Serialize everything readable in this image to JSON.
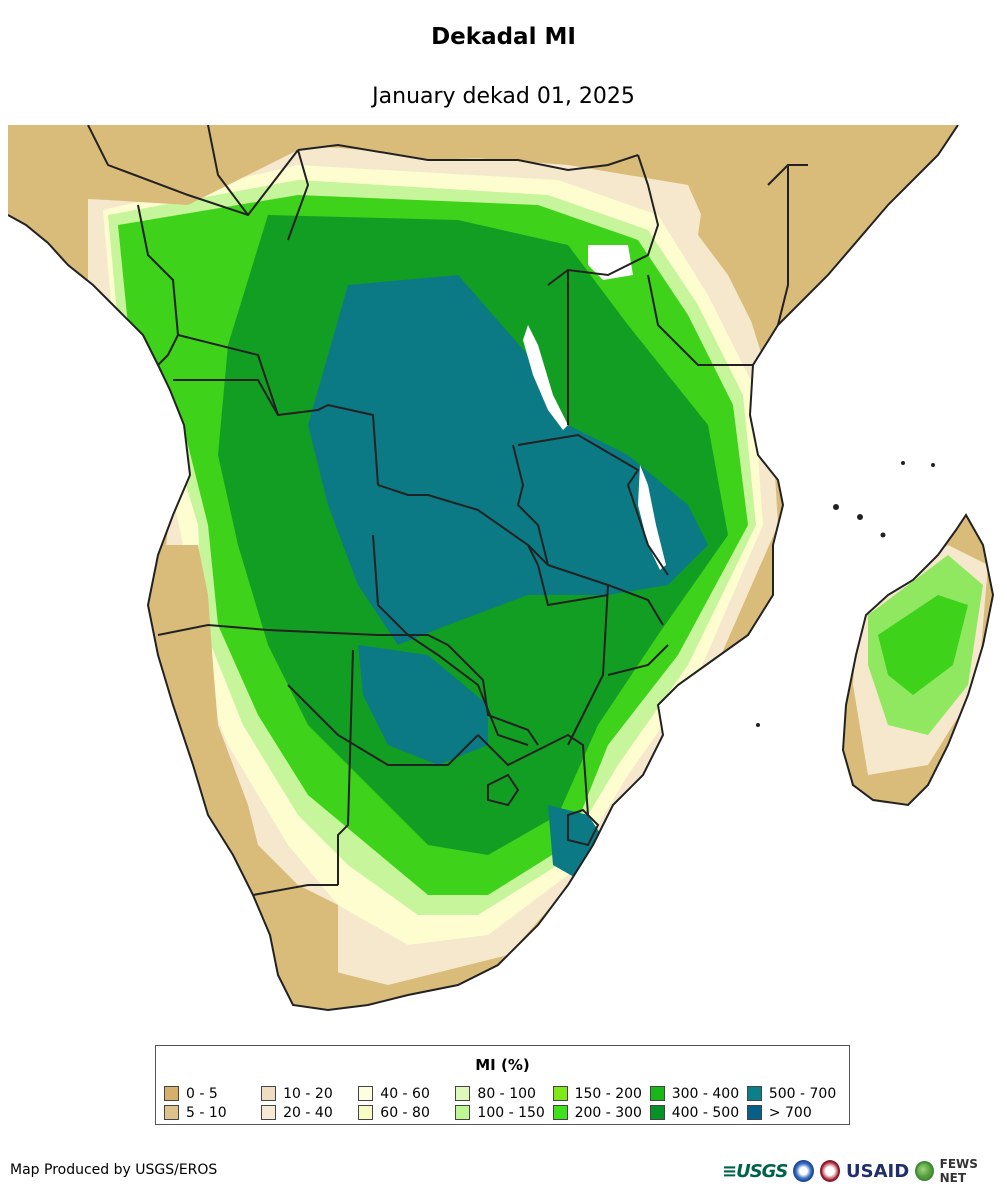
{
  "header": {
    "title": "Dekadal MI",
    "subtitle": "January dekad 01, 2025"
  },
  "map": {
    "region": "Southern Africa",
    "colors": {
      "ocean": "#ffffff",
      "dry": "#d9bb7a",
      "moderate": "#f6e8cc",
      "light": "#fdfdd0",
      "wet": "#3fd21a",
      "very_wet": "#0f9a1f",
      "extreme": "#08707a",
      "borders": "#222222"
    }
  },
  "legend": {
    "title": "MI (%)",
    "items": [
      {
        "label": "0 - 5",
        "color": "#d4b06a"
      },
      {
        "label": "5 - 10",
        "color": "#dcc38e"
      },
      {
        "label": "10 - 20",
        "color": "#f0dcc0"
      },
      {
        "label": "20 - 40",
        "color": "#f6ead6"
      },
      {
        "label": "40 - 60",
        "color": "#fdfde2"
      },
      {
        "label": "60 - 80",
        "color": "#f7fcc6"
      },
      {
        "label": "80 - 100",
        "color": "#def9ba"
      },
      {
        "label": "100 - 150",
        "color": "#bff794"
      },
      {
        "label": "150 - 200",
        "color": "#7ee818"
      },
      {
        "label": "200 - 300",
        "color": "#3fe01c"
      },
      {
        "label": "300 - 400",
        "color": "#18b818"
      },
      {
        "label": "400 - 500",
        "color": "#079227"
      },
      {
        "label": "500 - 700",
        "color": "#0b7f8a"
      },
      {
        "label": "> 700",
        "color": "#055f88"
      }
    ]
  },
  "footer": {
    "credit": "Map Produced by USGS/EROS",
    "logos": {
      "usgs": "≡USGS",
      "usaid": "USAID",
      "fews": "FEWS NET"
    }
  }
}
